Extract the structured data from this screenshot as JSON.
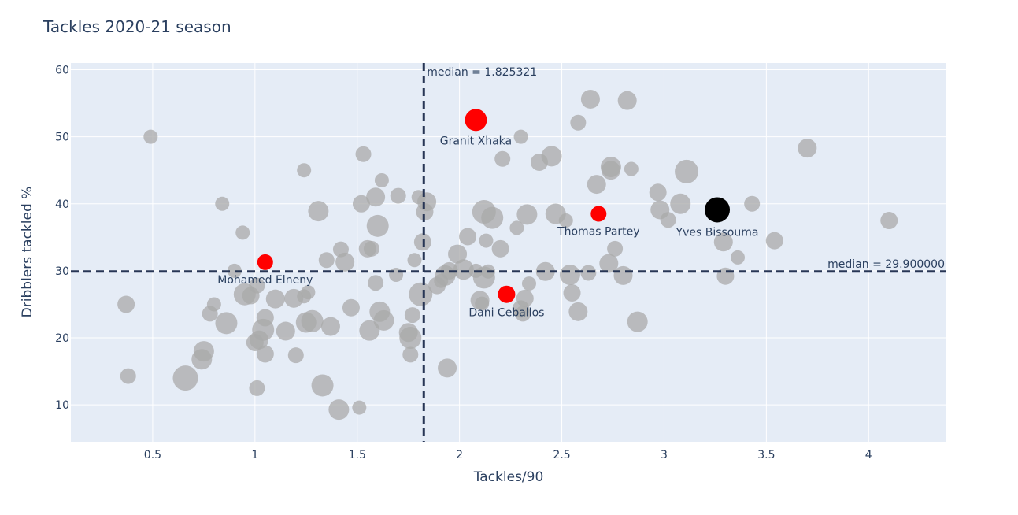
{
  "chart_data": {
    "type": "scatter",
    "title": "Tackles 2020-21 season",
    "xlabel": "Tackles/90",
    "ylabel": "Dribblers tackled %",
    "xlim": [
      0.1,
      4.38
    ],
    "ylim": [
      4.5,
      61
    ],
    "x_ticks": [
      0.5,
      1,
      1.5,
      2,
      2.5,
      3,
      3.5,
      4
    ],
    "x_tick_labels": [
      "0.5",
      "1",
      "1.5",
      "2",
      "2.5",
      "3",
      "3.5",
      "4"
    ],
    "y_ticks": [
      10,
      20,
      30,
      40,
      50,
      60
    ],
    "y_tick_labels": [
      "10",
      "20",
      "30",
      "40",
      "50",
      "60"
    ],
    "grid": true,
    "colors": {
      "background": "#e5ecf6",
      "grid": "#ffffff",
      "text": "#2a3f5f",
      "others": "#a9a9a9",
      "highlight": "#ff0000",
      "focus": "#000000",
      "median_line": "#283655"
    },
    "median_x": {
      "value": 1.825321,
      "label": "median = 1.825321"
    },
    "median_y": {
      "value": 29.9,
      "label": "median = 29.900000"
    },
    "highlighted_players": [
      {
        "name": "Granit Xhaka",
        "x": 2.08,
        "y": 52.5,
        "size": 14,
        "color": "#ff0000"
      },
      {
        "name": "Thomas Partey",
        "x": 2.68,
        "y": 38.5,
        "size": 10,
        "color": "#ff0000"
      },
      {
        "name": "Mohamed Elneny",
        "x": 1.05,
        "y": 31.3,
        "size": 10,
        "color": "#ff0000"
      },
      {
        "name": "Dani Ceballos",
        "x": 2.23,
        "y": 26.5,
        "size": 11,
        "color": "#ff0000"
      },
      {
        "name": "Yves Bissouma",
        "x": 3.26,
        "y": 39.1,
        "size": 16,
        "color": "#000000"
      }
    ],
    "other_players": [
      {
        "x": 0.49,
        "y": 50.0,
        "size": 9
      },
      {
        "x": 0.37,
        "y": 25.0,
        "size": 11
      },
      {
        "x": 0.38,
        "y": 14.3,
        "size": 10
      },
      {
        "x": 0.66,
        "y": 14.0,
        "size": 16
      },
      {
        "x": 0.74,
        "y": 16.8,
        "size": 13
      },
      {
        "x": 0.75,
        "y": 18.0,
        "size": 13
      },
      {
        "x": 0.78,
        "y": 23.6,
        "size": 10
      },
      {
        "x": 0.8,
        "y": 25.0,
        "size": 9
      },
      {
        "x": 0.84,
        "y": 40.0,
        "size": 9
      },
      {
        "x": 0.86,
        "y": 22.2,
        "size": 14
      },
      {
        "x": 0.9,
        "y": 30.0,
        "size": 9
      },
      {
        "x": 0.94,
        "y": 35.7,
        "size": 9
      },
      {
        "x": 0.95,
        "y": 26.5,
        "size": 14
      },
      {
        "x": 0.98,
        "y": 26.3,
        "size": 11
      },
      {
        "x": 1.0,
        "y": 19.3,
        "size": 11
      },
      {
        "x": 1.01,
        "y": 27.8,
        "size": 10
      },
      {
        "x": 1.01,
        "y": 12.5,
        "size": 10
      },
      {
        "x": 1.02,
        "y": 19.7,
        "size": 12
      },
      {
        "x": 1.04,
        "y": 21.2,
        "size": 14
      },
      {
        "x": 1.05,
        "y": 17.6,
        "size": 11
      },
      {
        "x": 1.05,
        "y": 23.0,
        "size": 11
      },
      {
        "x": 1.1,
        "y": 25.8,
        "size": 12
      },
      {
        "x": 1.15,
        "y": 21.0,
        "size": 12
      },
      {
        "x": 1.19,
        "y": 25.9,
        "size": 12
      },
      {
        "x": 1.2,
        "y": 17.4,
        "size": 10
      },
      {
        "x": 1.24,
        "y": 45.0,
        "size": 9
      },
      {
        "x": 1.24,
        "y": 26.2,
        "size": 9
      },
      {
        "x": 1.25,
        "y": 22.3,
        "size": 13
      },
      {
        "x": 1.26,
        "y": 26.8,
        "size": 9
      },
      {
        "x": 1.28,
        "y": 22.5,
        "size": 14
      },
      {
        "x": 1.31,
        "y": 38.9,
        "size": 13
      },
      {
        "x": 1.33,
        "y": 12.9,
        "size": 14
      },
      {
        "x": 1.35,
        "y": 31.6,
        "size": 10
      },
      {
        "x": 1.37,
        "y": 21.7,
        "size": 12
      },
      {
        "x": 1.41,
        "y": 9.3,
        "size": 13
      },
      {
        "x": 1.42,
        "y": 33.2,
        "size": 10
      },
      {
        "x": 1.44,
        "y": 31.3,
        "size": 12
      },
      {
        "x": 1.47,
        "y": 24.5,
        "size": 11
      },
      {
        "x": 1.51,
        "y": 9.6,
        "size": 9
      },
      {
        "x": 1.52,
        "y": 40.0,
        "size": 11
      },
      {
        "x": 1.53,
        "y": 47.4,
        "size": 10
      },
      {
        "x": 1.55,
        "y": 33.3,
        "size": 11
      },
      {
        "x": 1.56,
        "y": 21.1,
        "size": 13
      },
      {
        "x": 1.57,
        "y": 33.3,
        "size": 10
      },
      {
        "x": 1.59,
        "y": 28.2,
        "size": 10
      },
      {
        "x": 1.59,
        "y": 41.0,
        "size": 12
      },
      {
        "x": 1.6,
        "y": 36.7,
        "size": 14
      },
      {
        "x": 1.61,
        "y": 23.9,
        "size": 13
      },
      {
        "x": 1.62,
        "y": 43.5,
        "size": 9
      },
      {
        "x": 1.63,
        "y": 22.6,
        "size": 13
      },
      {
        "x": 1.69,
        "y": 29.4,
        "size": 9
      },
      {
        "x": 1.7,
        "y": 41.2,
        "size": 10
      },
      {
        "x": 1.75,
        "y": 20.8,
        "size": 12
      },
      {
        "x": 1.76,
        "y": 20.0,
        "size": 14
      },
      {
        "x": 1.76,
        "y": 17.5,
        "size": 10
      },
      {
        "x": 1.77,
        "y": 23.4,
        "size": 10
      },
      {
        "x": 1.78,
        "y": 31.6,
        "size": 9
      },
      {
        "x": 1.8,
        "y": 41.0,
        "size": 9
      },
      {
        "x": 1.81,
        "y": 26.5,
        "size": 15
      },
      {
        "x": 1.82,
        "y": 34.3,
        "size": 11
      },
      {
        "x": 1.83,
        "y": 38.8,
        "size": 11
      },
      {
        "x": 1.84,
        "y": 40.3,
        "size": 12
      },
      {
        "x": 1.89,
        "y": 27.8,
        "size": 11
      },
      {
        "x": 1.91,
        "y": 28.5,
        "size": 9
      },
      {
        "x": 1.93,
        "y": 29.3,
        "size": 13
      },
      {
        "x": 1.94,
        "y": 15.5,
        "size": 12
      },
      {
        "x": 1.95,
        "y": 30.0,
        "size": 11
      },
      {
        "x": 1.99,
        "y": 32.5,
        "size": 12
      },
      {
        "x": 2.02,
        "y": 30.2,
        "size": 13
      },
      {
        "x": 2.04,
        "y": 35.1,
        "size": 11
      },
      {
        "x": 2.08,
        "y": 30.0,
        "size": 9
      },
      {
        "x": 2.1,
        "y": 25.6,
        "size": 12
      },
      {
        "x": 2.11,
        "y": 25.1,
        "size": 9
      },
      {
        "x": 2.12,
        "y": 38.8,
        "size": 15
      },
      {
        "x": 2.12,
        "y": 29.0,
        "size": 14
      },
      {
        "x": 2.13,
        "y": 34.5,
        "size": 9
      },
      {
        "x": 2.14,
        "y": 29.9,
        "size": 9
      },
      {
        "x": 2.16,
        "y": 37.9,
        "size": 14
      },
      {
        "x": 2.2,
        "y": 33.3,
        "size": 11
      },
      {
        "x": 2.21,
        "y": 46.7,
        "size": 10
      },
      {
        "x": 2.28,
        "y": 36.4,
        "size": 9
      },
      {
        "x": 2.3,
        "y": 50.0,
        "size": 9
      },
      {
        "x": 2.3,
        "y": 24.3,
        "size": 11
      },
      {
        "x": 2.31,
        "y": 23.6,
        "size": 10
      },
      {
        "x": 2.32,
        "y": 25.9,
        "size": 11
      },
      {
        "x": 2.33,
        "y": 38.4,
        "size": 13
      },
      {
        "x": 2.34,
        "y": 28.1,
        "size": 9
      },
      {
        "x": 2.39,
        "y": 46.2,
        "size": 11
      },
      {
        "x": 2.42,
        "y": 29.9,
        "size": 12
      },
      {
        "x": 2.45,
        "y": 47.1,
        "size": 13
      },
      {
        "x": 2.47,
        "y": 38.5,
        "size": 13
      },
      {
        "x": 2.52,
        "y": 37.5,
        "size": 9
      },
      {
        "x": 2.54,
        "y": 29.4,
        "size": 13
      },
      {
        "x": 2.55,
        "y": 26.7,
        "size": 11
      },
      {
        "x": 2.58,
        "y": 23.9,
        "size": 12
      },
      {
        "x": 2.58,
        "y": 52.1,
        "size": 10
      },
      {
        "x": 2.63,
        "y": 29.7,
        "size": 10
      },
      {
        "x": 2.64,
        "y": 55.6,
        "size": 12
      },
      {
        "x": 2.67,
        "y": 42.9,
        "size": 12
      },
      {
        "x": 2.73,
        "y": 31.1,
        "size": 12
      },
      {
        "x": 2.74,
        "y": 45.0,
        "size": 12
      },
      {
        "x": 2.74,
        "y": 45.5,
        "size": 13
      },
      {
        "x": 2.76,
        "y": 33.3,
        "size": 10
      },
      {
        "x": 2.8,
        "y": 29.3,
        "size": 12
      },
      {
        "x": 2.82,
        "y": 55.4,
        "size": 12
      },
      {
        "x": 2.84,
        "y": 45.2,
        "size": 9
      },
      {
        "x": 2.87,
        "y": 22.4,
        "size": 13
      },
      {
        "x": 2.97,
        "y": 41.7,
        "size": 11
      },
      {
        "x": 2.98,
        "y": 39.1,
        "size": 12
      },
      {
        "x": 3.02,
        "y": 37.6,
        "size": 10
      },
      {
        "x": 3.08,
        "y": 40.0,
        "size": 13
      },
      {
        "x": 3.11,
        "y": 44.8,
        "size": 15
      },
      {
        "x": 3.29,
        "y": 34.3,
        "size": 12
      },
      {
        "x": 3.3,
        "y": 29.2,
        "size": 11
      },
      {
        "x": 3.36,
        "y": 32.0,
        "size": 9
      },
      {
        "x": 3.43,
        "y": 40.0,
        "size": 10
      },
      {
        "x": 3.54,
        "y": 34.5,
        "size": 11
      },
      {
        "x": 3.7,
        "y": 48.3,
        "size": 12
      },
      {
        "x": 4.1,
        "y": 37.5,
        "size": 11
      }
    ]
  }
}
